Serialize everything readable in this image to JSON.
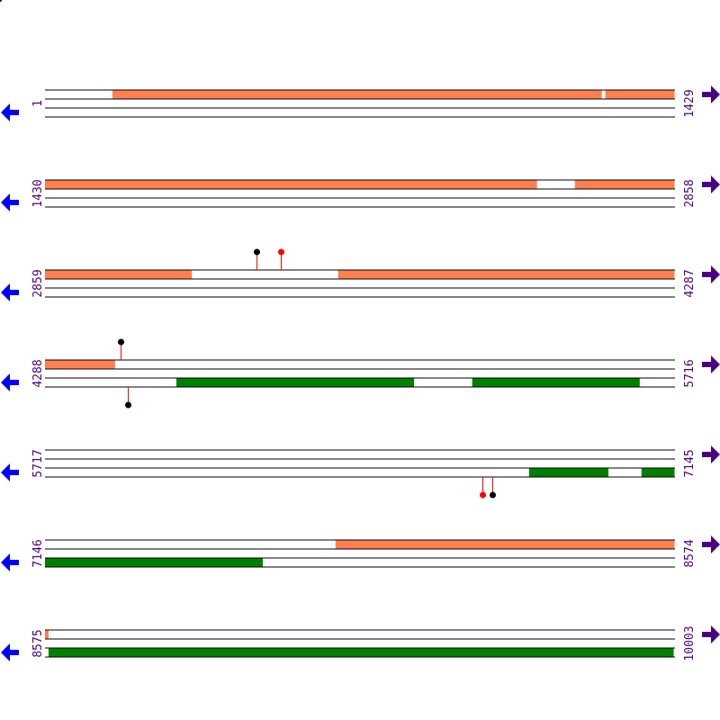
{
  "colors": {
    "forward_feature": "#ff7f50",
    "reverse_feature": "#008000",
    "left_arrow": "#0000ff",
    "right_arrow": "#4b0082",
    "label": "#4b0082",
    "stem": "#ff0000"
  },
  "icons": {
    "left": "arrow-left-icon",
    "right": "arrow-right-icon"
  },
  "rows": [
    {
      "start": "1",
      "end": "1429",
      "s": 1,
      "e": 1429,
      "top": [
        [
          154,
          1264
        ],
        [
          1272,
          1429
        ]
      ],
      "bottom": [],
      "markers": []
    },
    {
      "start": "1430",
      "end": "2858",
      "s": 1430,
      "e": 2858,
      "top": [
        [
          1430,
          2546
        ],
        [
          2632,
          2858
        ]
      ],
      "bottom": [],
      "markers": []
    },
    {
      "start": "2859",
      "end": "4287",
      "s": 2859,
      "e": 4287,
      "top": [
        [
          2859,
          3192
        ],
        [
          3524,
          4287
        ]
      ],
      "bottom": [],
      "markers": [
        {
          "pos": 3339,
          "strand": "top",
          "color": "#000000"
        },
        {
          "pos": 3394,
          "strand": "top",
          "color": "#ff0000"
        }
      ]
    },
    {
      "start": "4288",
      "end": "5716",
      "s": 4288,
      "e": 5716,
      "top": [
        [
          4288,
          4447
        ]
      ],
      "bottom": [
        [
          4586,
          5125
        ],
        [
          5257,
          5637
        ]
      ],
      "markers": [
        {
          "pos": 4459,
          "strand": "top",
          "color": "#000000"
        },
        {
          "pos": 4476,
          "strand": "bottom",
          "color": "#000000"
        }
      ]
    },
    {
      "start": "5717",
      "end": "7145",
      "s": 5717,
      "e": 7145,
      "top": [],
      "bottom": [
        [
          6815,
          6995
        ],
        [
          7070,
          7145
        ]
      ],
      "markers": [
        {
          "pos": 6709,
          "strand": "bottom",
          "color": "#ff0000"
        },
        {
          "pos": 6731,
          "strand": "bottom",
          "color": "#000000"
        }
      ]
    },
    {
      "start": "7146",
      "end": "8574",
      "s": 7146,
      "e": 8574,
      "top": [
        [
          7805,
          8574
        ]
      ],
      "bottom": [
        [
          7146,
          7640
        ]
      ],
      "markers": []
    },
    {
      "start": "8575",
      "end": "10003",
      "s": 8575,
      "e": 10003,
      "top": [
        [
          8575,
          8583
        ]
      ],
      "bottom": [
        [
          8583,
          10001
        ]
      ],
      "markers": []
    }
  ]
}
